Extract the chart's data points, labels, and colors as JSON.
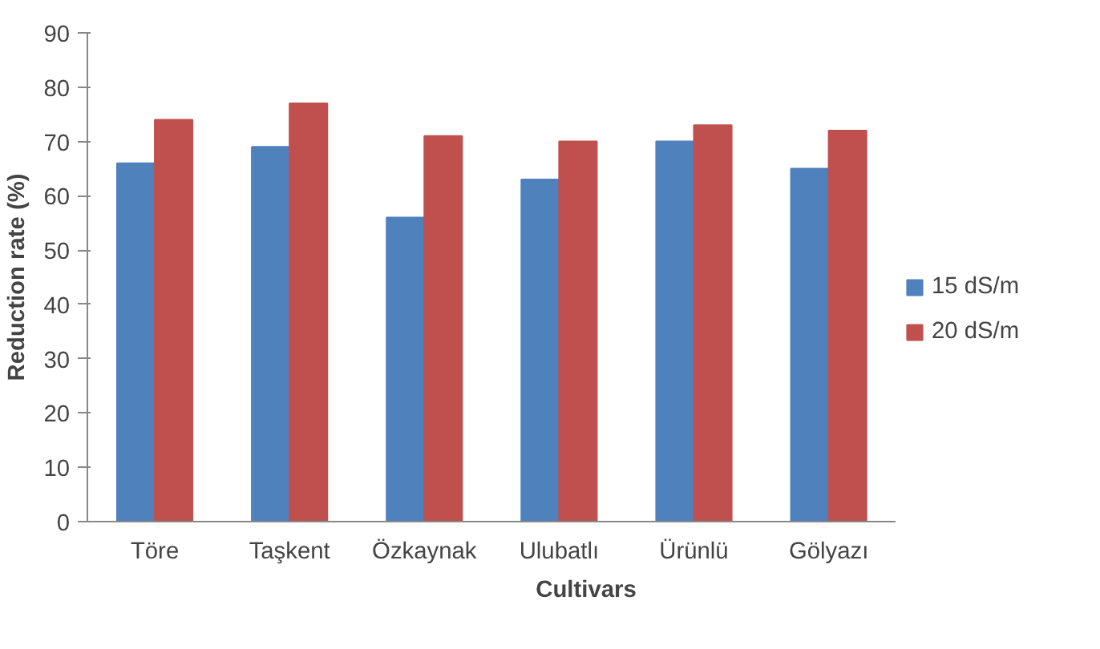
{
  "chart_data": {
    "type": "bar",
    "xlabel": "Cultivars",
    "ylabel": "Reduction rate (%)",
    "categories": [
      "Töre",
      "Taşkent",
      "Özkaynak",
      "Ulubatlı",
      "Ürünlü",
      "Gölyazı"
    ],
    "series": [
      {
        "name": "15 dS/m",
        "color": "#4f81bd",
        "values": [
          66,
          69,
          56,
          63,
          70,
          65
        ]
      },
      {
        "name": "20 dS/m",
        "color": "#c0504d",
        "values": [
          74,
          77,
          71,
          70,
          73,
          72
        ]
      }
    ],
    "ylim": [
      0,
      90
    ],
    "yticks": [
      0,
      10,
      20,
      30,
      40,
      50,
      60,
      70,
      80,
      90
    ],
    "grid": false,
    "legend": "right"
  }
}
